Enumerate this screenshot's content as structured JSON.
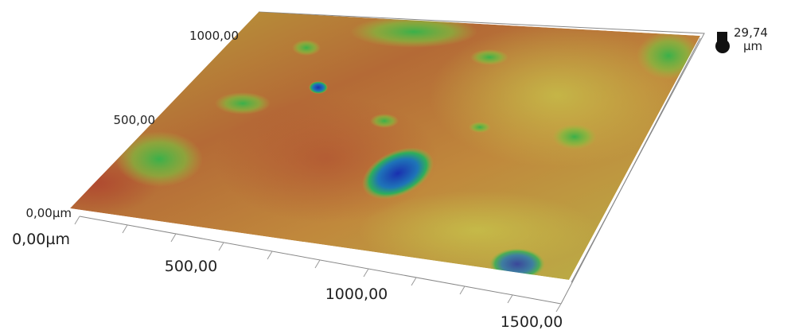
{
  "surface_plot": {
    "x_axis": {
      "ticks": [
        "0,00µm",
        "500,00",
        "1000,00",
        "1500,00"
      ]
    },
    "y_axis": {
      "ticks": [
        "0,00µm",
        "500,00",
        "1000,00"
      ]
    },
    "z_scale": {
      "max": "29,74",
      "unit": "µm"
    }
  }
}
